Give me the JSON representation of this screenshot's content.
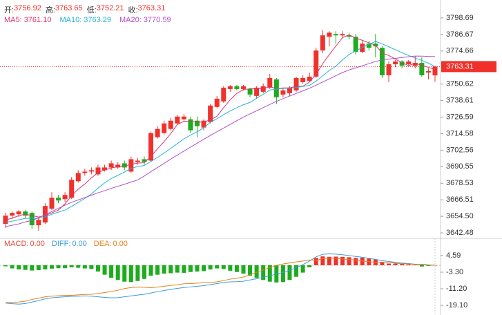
{
  "chart_data": [
    {
      "type": "candlestick",
      "header": [
        {
          "label": "开:",
          "value": 3756.92
        },
        {
          "label": "高:",
          "value": 3763.65
        },
        {
          "label": "低:",
          "value": 3752.21
        },
        {
          "label": "收:",
          "value": 3763.31
        }
      ],
      "up_color": "#f0312b",
      "down_color": "#1cad1c",
      "open": [
        3649,
        3655,
        3656,
        3658,
        3657,
        3648,
        3650,
        3660,
        3668,
        3667,
        3668,
        3680,
        3686,
        3687,
        3685,
        3688,
        3690,
        3690,
        3693,
        3687,
        3694,
        3696,
        3695,
        3712,
        3715,
        3718,
        3722,
        3725,
        3725,
        3724,
        3719,
        3723,
        3734,
        3738,
        3747,
        3749,
        3747,
        3747,
        3742,
        3745,
        3748,
        3754,
        3743,
        3744,
        3746,
        3752,
        3753,
        3756,
        3775,
        3785,
        3787,
        3786,
        3786,
        3785,
        3774,
        3780,
        3780,
        3777,
        3757,
        3765,
        3767,
        3765,
        3764,
        3766,
        3759,
        3756.92
      ],
      "high": [
        3657,
        3658,
        3659,
        3659,
        3658,
        3654,
        3664,
        3672,
        3670,
        3672,
        3683,
        3688,
        3689,
        3690,
        3692,
        3692,
        3695,
        3694,
        3695,
        3698,
        3697,
        3698,
        3716,
        3720,
        3724,
        3726,
        3728,
        3729,
        3727,
        3727,
        3725,
        3736,
        3742,
        3749,
        3750,
        3750,
        3750,
        3748,
        3749,
        3751,
        3758,
        3755,
        3748,
        3749,
        3756,
        3757,
        3759,
        3777,
        3790,
        3789,
        3789,
        3789,
        3788,
        3787,
        3782,
        3782,
        3787,
        3778,
        3767,
        3768,
        3768,
        3768,
        3771,
        3770,
        3762,
        3763.65
      ],
      "low": [
        3646,
        3653,
        3654,
        3653,
        3645,
        3644,
        3649,
        3659,
        3664,
        3665,
        3667,
        3679,
        3684,
        3685,
        3684,
        3687,
        3688,
        3689,
        3688,
        3686,
        3692,
        3692,
        3694,
        3711,
        3714,
        3717,
        3721,
        3724,
        3715,
        3712,
        3717,
        3722,
        3733,
        3737,
        3745,
        3746,
        3746,
        3741,
        3740,
        3744,
        3747,
        3736,
        3741,
        3742,
        3745,
        3751,
        3752,
        3755,
        3773,
        3778,
        3780,
        3784,
        3783,
        3772,
        3773,
        3775,
        3770,
        3755,
        3752,
        3763,
        3762,
        3764,
        3762,
        3756,
        3754,
        3752.21
      ],
      "close": [
        3655,
        3657,
        3658,
        3655,
        3648,
        3652,
        3662,
        3668,
        3666,
        3670,
        3681,
        3686,
        3687,
        3688,
        3690,
        3690,
        3693,
        3692,
        3690,
        3696,
        3695,
        3694,
        3715,
        3718,
        3722,
        3724,
        3727,
        3727,
        3717,
        3720,
        3724,
        3735,
        3740,
        3748,
        3749,
        3747,
        3749,
        3743,
        3748,
        3749,
        3755,
        3741,
        3746,
        3748,
        3755,
        3755,
        3756,
        3775,
        3786,
        3788,
        3786,
        3787,
        3785,
        3774,
        3780,
        3777,
        3778,
        3757,
        3765,
        3767,
        3764,
        3767,
        3766,
        3757,
        3760,
        3763.31
      ],
      "series": [
        {
          "name": "MA5:",
          "current": {
            "value": 3761.1,
            "label": "3761.10"
          },
          "color": "#d9366e",
          "values": [
            3652,
            3653,
            3655,
            3656,
            3655,
            3654,
            3655,
            3657,
            3659,
            3663.6,
            3669.4,
            3674.2,
            3678,
            3682.4,
            3686.4,
            3688.2,
            3689.6,
            3690.6,
            3691,
            3692.2,
            3693.2,
            3693.4,
            3698,
            3703.6,
            3708.8,
            3714.6,
            3721.2,
            3723.6,
            3723.4,
            3723,
            3723,
            3724.6,
            3727.2,
            3733.4,
            3739.2,
            3743.8,
            3746.6,
            3747.2,
            3747.2,
            3747.2,
            3748.8,
            3747.2,
            3747.8,
            3747.8,
            3749,
            3749,
            3752,
            3757.8,
            3765.4,
            3772,
            3778.2,
            3784.4,
            3786.4,
            3784,
            3782.4,
            3780.6,
            3778.8,
            3773.2,
            3771.4,
            3768.8,
            3766.2,
            3764,
            3765.8,
            3764.2,
            3762.8,
            3761.1
          ]
        },
        {
          "name": "MA10:",
          "current": 3763.29,
          "color": "#28b3d2",
          "values": [
            3650,
            3651,
            3652,
            3653,
            3653,
            3653,
            3654,
            3656,
            3657.5,
            3659.1,
            3661.7,
            3664.6,
            3667.5,
            3670.7,
            3675,
            3678.8,
            3681.9,
            3684.3,
            3686.7,
            3689.3,
            3690.7,
            3691.5,
            3694.3,
            3697.3,
            3700.5,
            3703.9,
            3707.3,
            3710.8,
            3713.5,
            3715.9,
            3718.8,
            3722.9,
            3725.4,
            3728.4,
            3731.1,
            3733.4,
            3735.6,
            3737.2,
            3740.3,
            3743.2,
            3746.3,
            3746.9,
            3747.5,
            3747.5,
            3748.1,
            3748.9,
            3749.6,
            3752.8,
            3756.6,
            3760.5,
            3763.6,
            3768.2,
            3772.1,
            3774.7,
            3777.2,
            3779.4,
            3781.6,
            3779.8,
            3777.7,
            3775.6,
            3773.4,
            3771.4,
            3769.5,
            3767.8,
            3765.8,
            3763.29
          ]
        },
        {
          "name": "MA20:",
          "current": 3770.59,
          "color": "#b24fc8",
          "values": [
            3647,
            3648,
            3649,
            3650.5,
            3651.5,
            3653.4,
            3655.7,
            3658,
            3660.3,
            3662.6,
            3664.7,
            3666.4,
            3668.1,
            3669.8,
            3671.6,
            3673.1,
            3674.8,
            3676.3,
            3677.8,
            3679.4,
            3680.9,
            3683.8,
            3686.9,
            3690,
            3693,
            3696.1,
            3699,
            3701.9,
            3704.8,
            3707.6,
            3710.5,
            3713.3,
            3716,
            3718.6,
            3721.3,
            3724,
            3726.6,
            3728.9,
            3731.2,
            3733.5,
            3735.8,
            3738,
            3740,
            3741.9,
            3743.8,
            3745.7,
            3747.6,
            3749.8,
            3752.1,
            3754.4,
            3756.7,
            3759,
            3760.9,
            3762.4,
            3763.9,
            3765.5,
            3767,
            3768.2,
            3768.8,
            3769.3,
            3769.9,
            3770.5,
            3771,
            3770.9,
            3770.7,
            3770.59
          ]
        }
      ],
      "ylim": [
        3638.5,
        3809.2
      ],
      "yticks": [
        3798.69,
        3786.67,
        3774.66,
        3750.62,
        3738.61,
        3726.59,
        3714.58,
        3702.56,
        3690.55,
        3678.53,
        3666.51,
        {
          "value": 3654.5,
          "label": "3654.50"
        },
        3642.48
      ]
    },
    {
      "type": "macd",
      "up_color": "#f0312b",
      "down_color": "#1cad1c",
      "series": [
        {
          "name": "MACD:",
          "current": {
            "value": 0,
            "label": "0.00"
          },
          "color": "#e0463e",
          "values": [
            -0.5,
            -1.5,
            -2.0,
            -2.2,
            -2.5,
            -2.3,
            -2.0,
            -1.6,
            -1.4,
            -1.4,
            -1.0,
            -1.2,
            -1.5,
            -1.8,
            -3.0,
            -4.5,
            -6.0,
            -7.0,
            -7.8,
            -8.0,
            -7.5,
            -6.5,
            -5.0,
            -4.5,
            -4.0,
            -3.8,
            -3.5,
            -3.6,
            -3.2,
            -3.0,
            -2.8,
            -2.0,
            -1.5,
            -1.8,
            -2.6,
            -3.2,
            -4.0,
            -5.0,
            -6.0,
            -7.0,
            -7.8,
            -8.2,
            -8.0,
            -7.0,
            -5.5,
            -3.5,
            -1.0,
            3.5,
            4.2,
            4.0,
            4.1,
            4.0,
            3.8,
            3.5,
            3.6,
            3.2,
            2.8,
            1.5,
            0.8,
            0.8,
            0.6,
            0.4,
            0.2,
            -0.6,
            -0.3,
            0
          ]
        },
        {
          "name": "DIFF:",
          "current": {
            "value": 0,
            "label": "0.00"
          },
          "color": "#3b9be0",
          "values": [
            -18.0,
            -18.3,
            -18.5,
            -18.2,
            -17.5,
            -16.8,
            -16.0,
            -15.5,
            -15.2,
            -15.0,
            -14.8,
            -14.7,
            -14.6,
            -14.7,
            -15.0,
            -15.3,
            -15.5,
            -15.4,
            -15.0,
            -14.6,
            -14.2,
            -13.8,
            -13.2,
            -12.6,
            -12.0,
            -11.5,
            -11.0,
            -10.6,
            -10.3,
            -10.0,
            -9.7,
            -9.2,
            -8.7,
            -8.2,
            -7.9,
            -7.8,
            -7.6,
            -7.0,
            -6.4,
            -5.7,
            -5.0,
            -4.2,
            -3.4,
            -2.4,
            -1.2,
            0.3,
            2.0,
            4.0,
            5.2,
            5.4,
            5.3,
            5.0,
            4.6,
            4.2,
            3.8,
            3.3,
            2.8,
            2.2,
            1.8,
            1.4,
            1.0,
            0.8,
            0.5,
            0.2,
            0.1,
            0
          ]
        },
        {
          "name": "DEA:",
          "current": {
            "value": 0,
            "label": "0.00"
          },
          "color": "#e5811a",
          "values": [
            -17.8,
            -17.6,
            -17.5,
            -17.1,
            -16.3,
            -15.7,
            -15.0,
            -14.7,
            -14.5,
            -14.3,
            -14.3,
            -14.1,
            -13.9,
            -13.8,
            -13.5,
            -13.0,
            -12.5,
            -11.9,
            -11.1,
            -10.6,
            -10.4,
            -10.5,
            -10.7,
            -10.4,
            -10.0,
            -9.6,
            -9.3,
            -8.8,
            -8.7,
            -8.5,
            -8.3,
            -8.2,
            -7.9,
            -7.3,
            -6.6,
            -6.2,
            -5.6,
            -4.5,
            -3.4,
            -2.2,
            -1.1,
            -0.1,
            0.6,
            1.1,
            1.6,
            2.0,
            2.5,
            2.3,
            3.1,
            3.4,
            3.3,
            3.0,
            2.7,
            2.5,
            2.0,
            1.7,
            1.4,
            1.5,
            1.4,
            1.0,
            0.7,
            0.6,
            0.4,
            0.5,
            0.2,
            0
          ]
        }
      ],
      "ylim": [
        -21.7,
        7.88
      ],
      "yticks": [
        4.59,
        {
          "value": -3.3,
          "label": "-3.30"
        },
        {
          "value": -11.2,
          "label": "-11.20"
        },
        {
          "value": -19.1,
          "label": "-19.10"
        }
      ]
    }
  ]
}
